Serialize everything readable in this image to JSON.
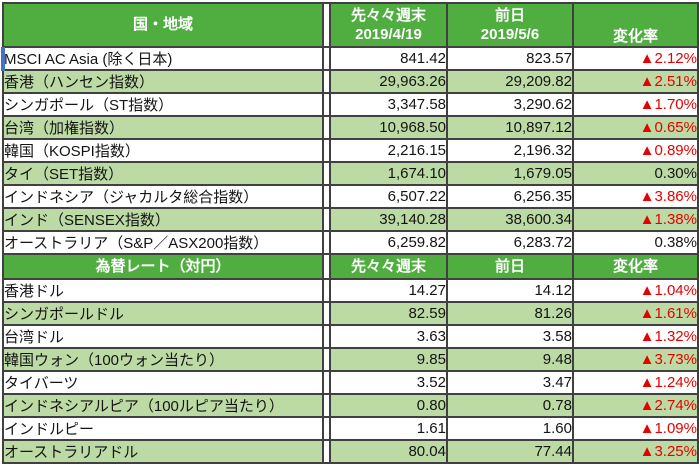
{
  "colors": {
    "header_green": "#50ae40",
    "band_green": "#bcdaa4",
    "border_gray": "#404040",
    "negative_red": "#e60000",
    "selection_blue": "#4472c4",
    "header_text": "#ffffff",
    "body_text": "#141414"
  },
  "chart_data": {
    "type": "table",
    "sections": [
      {
        "header": {
          "col1": "国・地域",
          "col2_line1": "先々々週末",
          "col2_line2": "2019/4/19",
          "col3_line1": "前日",
          "col3_line2": "2019/5/6",
          "col4": "変化率"
        },
        "rows": [
          {
            "label": "MSCI AC Asia (除く日本)",
            "prev": "841.42",
            "last": "823.57",
            "change": "▲2.12%",
            "negative": true
          },
          {
            "label": "香港（ハンセン指数）",
            "prev": "29,963.26",
            "last": "29,209.82",
            "change": "▲2.51%",
            "negative": true
          },
          {
            "label": "シンガポール（ST指数）",
            "prev": "3,347.58",
            "last": "3,290.62",
            "change": "▲1.70%",
            "negative": true
          },
          {
            "label": "台湾（加権指数）",
            "prev": "10,968.50",
            "last": "10,897.12",
            "change": "▲0.65%",
            "negative": true
          },
          {
            "label": "韓国（KOSPI指数）",
            "prev": "2,216.15",
            "last": "2,196.32",
            "change": "▲0.89%",
            "negative": true
          },
          {
            "label": "タイ（SET指数）",
            "prev": "1,674.10",
            "last": "1,679.05",
            "change": "0.30%",
            "negative": false
          },
          {
            "label": "インドネシア（ジャカルタ総合指数）",
            "prev": "6,507.22",
            "last": "6,256.35",
            "change": "▲3.86%",
            "negative": true
          },
          {
            "label": "インド（SENSEX指数）",
            "prev": "39,140.28",
            "last": "38,600.34",
            "change": "▲1.38%",
            "negative": true
          },
          {
            "label": "オーストラリア（S&P／ASX200指数）",
            "prev": "6,259.82",
            "last": "6,283.72",
            "change": "0.38%",
            "negative": false
          }
        ]
      },
      {
        "header": {
          "col1": "為替レート（対円）",
          "col2_line1": "先々々週末",
          "col2_line2": "",
          "col3_line1": "前日",
          "col3_line2": "",
          "col4": "変化率"
        },
        "rows": [
          {
            "label": "香港ドル",
            "prev": "14.27",
            "last": "14.12",
            "change": "▲1.04%",
            "negative": true
          },
          {
            "label": "シンガポールドル",
            "prev": "82.59",
            "last": "81.26",
            "change": "▲1.61%",
            "negative": true
          },
          {
            "label": "台湾ドル",
            "prev": "3.63",
            "last": "3.58",
            "change": "▲1.32%",
            "negative": true
          },
          {
            "label": "韓国ウォン（100ウォン当たり）",
            "prev": "9.85",
            "last": "9.48",
            "change": "▲3.73%",
            "negative": true
          },
          {
            "label": "タイバーツ",
            "prev": "3.52",
            "last": "3.47",
            "change": "▲1.24%",
            "negative": true
          },
          {
            "label": "インドネシアルピア（100ルピア当たり）",
            "prev": "0.80",
            "last": "0.78",
            "change": "▲2.74%",
            "negative": true
          },
          {
            "label": "インドルピー",
            "prev": "1.61",
            "last": "1.60",
            "change": "▲1.09%",
            "negative": true
          },
          {
            "label": "オーストラリアドル",
            "prev": "80.04",
            "last": "77.44",
            "change": "▲3.25%",
            "negative": true
          }
        ]
      }
    ]
  }
}
